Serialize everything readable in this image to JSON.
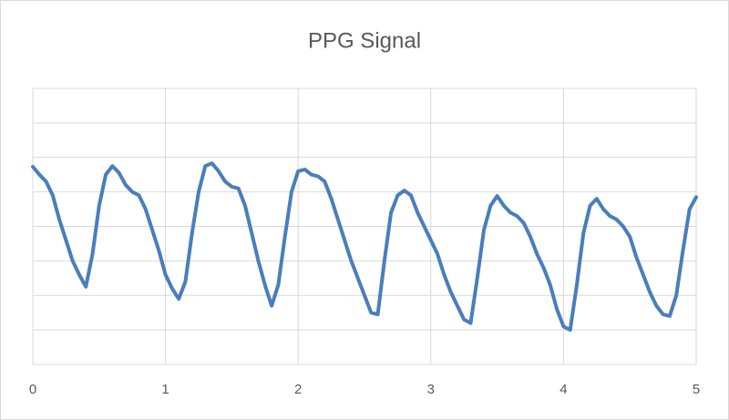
{
  "chart_data": {
    "type": "line",
    "title": "PPG Signal",
    "x": [
      0,
      0.05,
      0.1,
      0.15,
      0.2,
      0.25,
      0.3,
      0.35,
      0.4,
      0.45,
      0.5,
      0.55,
      0.6,
      0.65,
      0.7,
      0.75,
      0.8,
      0.85,
      0.9,
      0.95,
      1,
      1.05,
      1.1,
      1.15,
      1.2,
      1.25,
      1.3,
      1.35,
      1.4,
      1.45,
      1.5,
      1.55,
      1.6,
      1.65,
      1.7,
      1.75,
      1.8,
      1.85,
      1.9,
      1.95,
      2,
      2.05,
      2.1,
      2.15,
      2.2,
      2.25,
      2.3,
      2.35,
      2.4,
      2.45,
      2.5,
      2.55,
      2.6,
      2.65,
      2.7,
      2.75,
      2.8,
      2.85,
      2.9,
      2.95,
      3,
      3.05,
      3.1,
      3.15,
      3.2,
      3.25,
      3.3,
      3.35,
      3.4,
      3.45,
      3.5,
      3.55,
      3.6,
      3.65,
      3.7,
      3.75,
      3.8,
      3.85,
      3.9,
      3.95,
      4,
      4.05,
      4.1,
      4.15,
      4.2,
      4.25,
      4.3,
      4.35,
      4.4,
      4.45,
      4.5,
      4.55,
      4.6,
      4.65,
      4.7,
      4.75,
      4.8,
      4.85,
      4.9,
      4.95,
      5
    ],
    "series": [
      {
        "color": "#4a7ebb",
        "values": [
          5.73,
          5.5,
          5.3,
          4.9,
          4.2,
          3.6,
          3.0,
          2.6,
          2.25,
          3.2,
          4.6,
          5.5,
          5.75,
          5.55,
          5.2,
          5.0,
          4.9,
          4.5,
          3.9,
          3.3,
          2.6,
          2.2,
          1.9,
          2.4,
          3.8,
          5.0,
          5.75,
          5.83,
          5.6,
          5.3,
          5.15,
          5.1,
          4.6,
          3.8,
          3.0,
          2.3,
          1.7,
          2.3,
          3.7,
          5.0,
          5.6,
          5.65,
          5.5,
          5.45,
          5.3,
          4.8,
          4.2,
          3.6,
          3.0,
          2.5,
          2.0,
          1.5,
          1.45,
          3.0,
          4.4,
          4.9,
          5.04,
          4.9,
          4.4,
          4.0,
          3.6,
          3.2,
          2.6,
          2.1,
          1.7,
          1.3,
          1.2,
          2.5,
          3.9,
          4.6,
          4.88,
          4.6,
          4.4,
          4.3,
          4.1,
          3.7,
          3.2,
          2.8,
          2.3,
          1.6,
          1.1,
          1.0,
          2.3,
          3.8,
          4.6,
          4.8,
          4.5,
          4.3,
          4.2,
          4.0,
          3.7,
          3.1,
          2.6,
          2.1,
          1.7,
          1.45,
          1.4,
          2.0,
          3.3,
          4.5,
          4.85
        ]
      }
    ],
    "xlim": [
      0,
      5
    ],
    "xticks": [
      0,
      1,
      2,
      3,
      4,
      5
    ],
    "ylim": [
      0,
      8
    ],
    "yticks": [
      0,
      1,
      2,
      3,
      4,
      5,
      6,
      7,
      8
    ],
    "ytick_labels_visible": false,
    "grid": true
  }
}
